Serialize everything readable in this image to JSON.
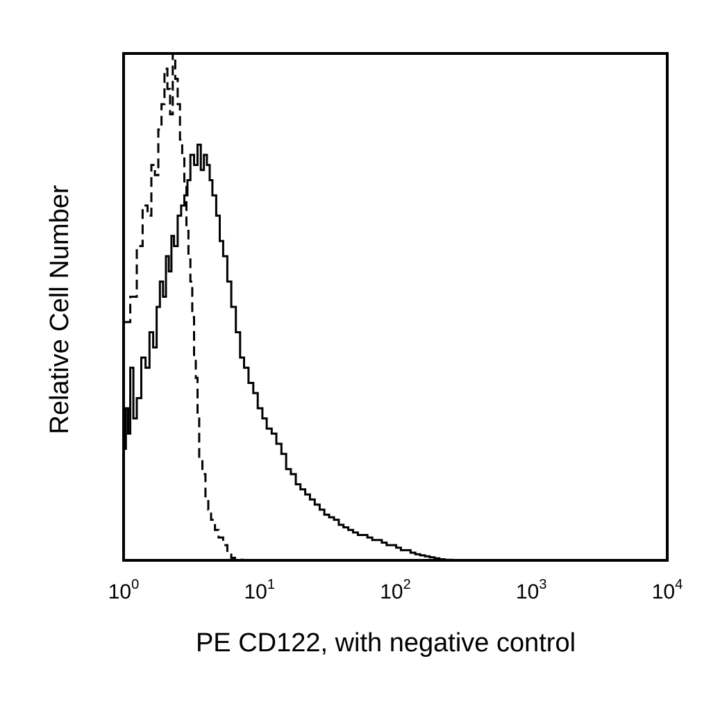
{
  "chart_data": {
    "type": "line",
    "title": "",
    "xlabel": "PE CD122, with negative control",
    "ylabel": "Relative Cell Number",
    "xscale": "log",
    "xlim": [
      1,
      10000
    ],
    "ylim": [
      0,
      100
    ],
    "grid": false,
    "x_ticks": [
      {
        "base": "10",
        "exp": "0",
        "value": 1
      },
      {
        "base": "10",
        "exp": "1",
        "value": 10
      },
      {
        "base": "10",
        "exp": "2",
        "value": 100
      },
      {
        "base": "10",
        "exp": "3",
        "value": 1000
      },
      {
        "base": "10",
        "exp": "4",
        "value": 10000
      }
    ],
    "series": [
      {
        "style": "dashed",
        "color": "#000000",
        "x": [
          1.0,
          1.12,
          1.25,
          1.38,
          1.5,
          1.6,
          1.7,
          1.8,
          1.9,
          2.0,
          2.1,
          2.2,
          2.3,
          2.4,
          2.5,
          2.6,
          2.7,
          2.8,
          2.9,
          3.0,
          3.1,
          3.2,
          3.3,
          3.4,
          3.5,
          3.6,
          3.8,
          4.0,
          4.2,
          4.4,
          4.7,
          5.0,
          5.4,
          5.8,
          6.2,
          6.6,
          7.0,
          7.5
        ],
        "y": [
          47,
          52,
          62,
          70,
          68,
          78,
          76,
          85,
          90,
          97,
          93,
          88,
          100,
          95,
          90,
          83,
          80,
          74,
          65,
          60,
          55,
          48,
          40,
          36,
          28,
          20,
          17,
          12,
          10,
          8,
          6,
          4.5,
          3,
          1.5,
          0.5,
          0.2,
          0.1,
          0
        ]
      },
      {
        "style": "solid",
        "color": "#000000",
        "x": [
          1.0,
          1.04,
          1.08,
          1.12,
          1.18,
          1.25,
          1.35,
          1.45,
          1.55,
          1.65,
          1.75,
          1.85,
          1.95,
          2.05,
          2.15,
          2.25,
          2.35,
          2.5,
          2.65,
          2.8,
          2.95,
          3.1,
          3.3,
          3.5,
          3.7,
          3.9,
          4.1,
          4.3,
          4.5,
          4.8,
          5.1,
          5.4,
          5.8,
          6.2,
          6.7,
          7.2,
          7.7,
          8.3,
          9.0,
          9.7,
          10.5,
          11.3,
          12.3,
          13.3,
          14.5,
          15.7,
          17.0,
          18.5,
          20.0,
          21.7,
          23.5,
          25.5,
          27.7,
          30.0,
          32.5,
          35.3,
          38.3,
          41.5,
          45.0,
          48.8,
          52.9,
          57.4,
          62.2,
          67.5,
          73.2,
          79.4,
          86.1,
          93.4,
          101.3,
          109.8,
          119.1,
          129.2,
          140.1,
          152.0,
          164.8,
          178.8,
          193.9,
          210.3,
          230.0,
          260.0
        ],
        "y": [
          22,
          30,
          25,
          38,
          28,
          32,
          40,
          38,
          45,
          42,
          50,
          55,
          52,
          60,
          57,
          64,
          62,
          68,
          70,
          72,
          75,
          80,
          78,
          82,
          77,
          80,
          78,
          75,
          72,
          68,
          63,
          60,
          55,
          50,
          45,
          40,
          38,
          35,
          33,
          30,
          28,
          26,
          25,
          23,
          21,
          18,
          17,
          15,
          14,
          13,
          12,
          11,
          10,
          9,
          8.5,
          8,
          7,
          6.5,
          6,
          5.5,
          5,
          5,
          4.5,
          4,
          4,
          3.5,
          3,
          3,
          2.5,
          2,
          2,
          1.5,
          1.2,
          1,
          0.8,
          0.6,
          0.4,
          0.2,
          0.1,
          0
        ]
      }
    ]
  }
}
